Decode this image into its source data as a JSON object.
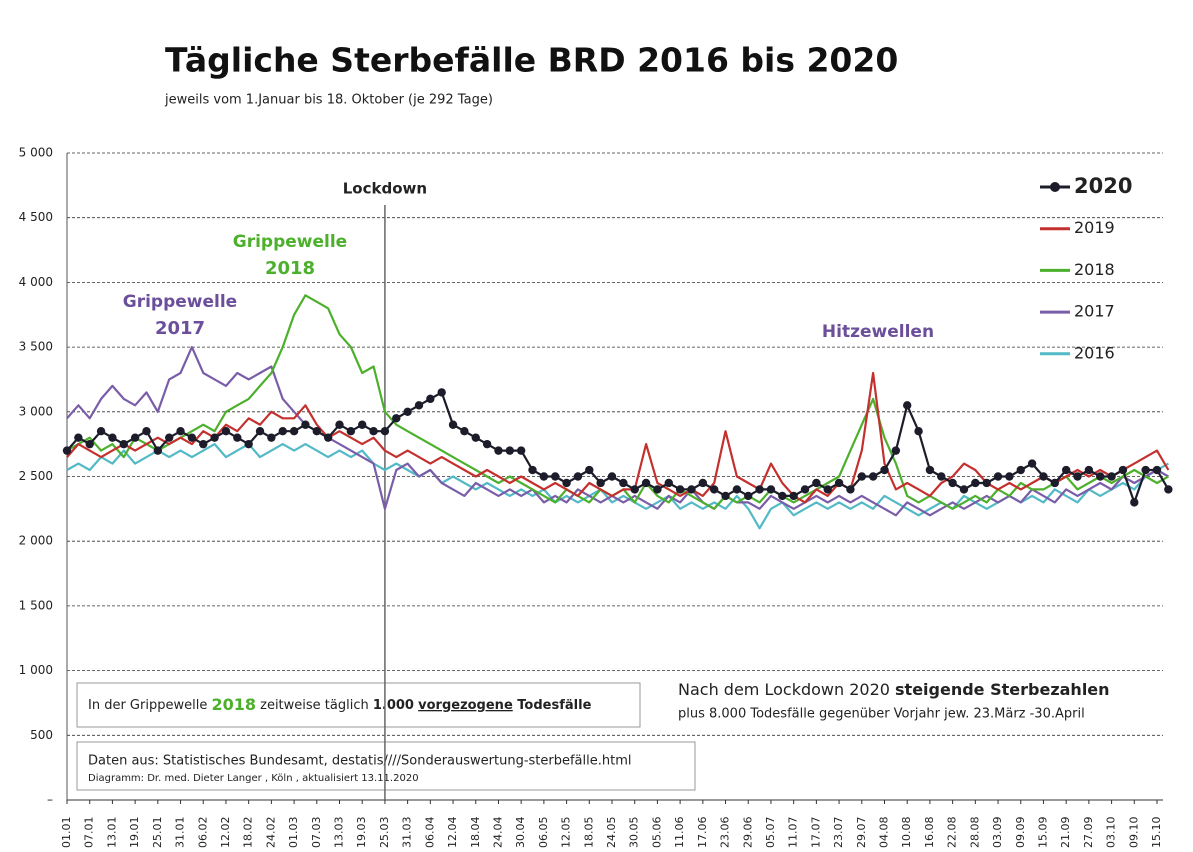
{
  "chart_data": {
    "type": "line",
    "title": "Tägliche Sterbefälle BRD 2016 bis 2020",
    "subtitle": "jeweils vom 1.Januar bis 18. Oktober  (je 292 Tage)",
    "categories": [
      "01.01",
      null,
      "07.01",
      null,
      "13.01",
      null,
      "19.01",
      null,
      "25.01",
      null,
      "31.01",
      null,
      "06.02",
      null,
      "12.02",
      null,
      "18.02",
      null,
      "24.02",
      null,
      "01.03",
      null,
      "07.03",
      null,
      "13.03",
      null,
      "19.03",
      null,
      "25.03",
      null,
      "31.03",
      null,
      "06.04",
      null,
      "12.04",
      null,
      "18.04",
      null,
      "24.04",
      null,
      "30.04",
      null,
      "06.05",
      null,
      "12.05",
      null,
      "18.05",
      null,
      "24.05",
      null,
      "30.05",
      null,
      "05.06",
      null,
      "11.06",
      null,
      "17.06",
      null,
      "23.06",
      null,
      "29.06",
      null,
      "05.07",
      null,
      "11.07",
      null,
      "17.07",
      null,
      "23.07",
      null,
      "29.07",
      null,
      "04.08",
      null,
      "10.08",
      null,
      "16.08",
      null,
      "22.08",
      null,
      "28.08",
      null,
      "03.09",
      null,
      "09.09",
      null,
      "15.09",
      null,
      "21.09",
      null,
      "27.09",
      null,
      "03.10",
      null,
      "09.10",
      null,
      "15.10",
      null
    ],
    "series": [
      {
        "name": "2020",
        "color": "#1c1c2a",
        "markers": true,
        "values": [
          2700,
          2800,
          2750,
          2850,
          2800,
          2750,
          2800,
          2850,
          2700,
          2800,
          2850,
          2800,
          2750,
          2800,
          2850,
          2800,
          2750,
          2850,
          2800,
          2850,
          2850,
          2900,
          2850,
          2800,
          2900,
          2850,
          2900,
          2850,
          2850,
          2950,
          3000,
          3050,
          3100,
          3150,
          2900,
          2850,
          2800,
          2750,
          2700,
          2700,
          2700,
          2550,
          2500,
          2500,
          2450,
          2500,
          2550,
          2450,
          2500,
          2450,
          2400,
          2450,
          2400,
          2450,
          2400,
          2400,
          2450,
          2400,
          2350,
          2400,
          2350,
          2400,
          2400,
          2350,
          2350,
          2400,
          2450,
          2400,
          2450,
          2400,
          2500,
          2500,
          2550,
          2700,
          3050,
          2850,
          2550,
          2500,
          2450,
          2400,
          2450,
          2450,
          2500,
          2500,
          2550,
          2600,
          2500,
          2450,
          2550,
          2500,
          2550,
          2500,
          2500,
          2550,
          2300,
          2550,
          2550,
          2400
        ]
      },
      {
        "name": "2019",
        "color": "#c4302e",
        "markers": false,
        "values": [
          2650,
          2750,
          2700,
          2650,
          2700,
          2750,
          2700,
          2750,
          2800,
          2750,
          2800,
          2750,
          2850,
          2800,
          2900,
          2850,
          2950,
          2900,
          3000,
          2950,
          2950,
          3050,
          2900,
          2800,
          2850,
          2800,
          2750,
          2800,
          2700,
          2650,
          2700,
          2650,
          2600,
          2650,
          2600,
          2550,
          2500,
          2550,
          2500,
          2450,
          2500,
          2450,
          2400,
          2450,
          2400,
          2350,
          2450,
          2400,
          2350,
          2400,
          2400,
          2750,
          2450,
          2400,
          2350,
          2400,
          2350,
          2450,
          2850,
          2500,
          2450,
          2400,
          2600,
          2450,
          2350,
          2300,
          2400,
          2350,
          2450,
          2400,
          2700,
          3300,
          2600,
          2400,
          2450,
          2400,
          2350,
          2450,
          2500,
          2600,
          2550,
          2450,
          2400,
          2450,
          2400,
          2450,
          2500,
          2450,
          2500,
          2550,
          2500,
          2550,
          2500,
          2550,
          2600,
          2650,
          2700,
          2550
        ]
      },
      {
        "name": "2018",
        "color": "#4db02c",
        "markers": false,
        "values": [
          2700,
          2750,
          2800,
          2700,
          2750,
          2650,
          2800,
          2750,
          2700,
          2750,
          2800,
          2850,
          2900,
          2850,
          3000,
          3050,
          3100,
          3200,
          3300,
          3500,
          3750,
          3900,
          3850,
          3800,
          3600,
          3500,
          3300,
          3350,
          3000,
          2900,
          2850,
          2800,
          2750,
          2700,
          2650,
          2600,
          2550,
          2500,
          2450,
          2500,
          2450,
          2400,
          2350,
          2300,
          2400,
          2350,
          2300,
          2400,
          2350,
          2400,
          2300,
          2450,
          2350,
          2300,
          2400,
          2350,
          2300,
          2250,
          2350,
          2300,
          2350,
          2300,
          2400,
          2350,
          2300,
          2350,
          2400,
          2450,
          2500,
          2700,
          2900,
          3100,
          2800,
          2600,
          2350,
          2300,
          2350,
          2300,
          2250,
          2300,
          2350,
          2300,
          2400,
          2350,
          2450,
          2400,
          2400,
          2450,
          2500,
          2400,
          2450,
          2500,
          2450,
          2500,
          2550,
          2500,
          2450,
          2500
        ]
      },
      {
        "name": "2017",
        "color": "#7a5da8",
        "markers": false,
        "values": [
          2950,
          3050,
          2950,
          3100,
          3200,
          3100,
          3050,
          3150,
          3000,
          3250,
          3300,
          3500,
          3300,
          3250,
          3200,
          3300,
          3250,
          3300,
          3350,
          3100,
          3000,
          2900,
          2850,
          2800,
          2750,
          2700,
          2650,
          2600,
          2250,
          2550,
          2600,
          2500,
          2550,
          2450,
          2400,
          2350,
          2450,
          2400,
          2350,
          2400,
          2350,
          2400,
          2300,
          2350,
          2300,
          2400,
          2350,
          2300,
          2350,
          2300,
          2350,
          2300,
          2250,
          2350,
          2300,
          2400,
          2300,
          2250,
          2350,
          2300,
          2300,
          2250,
          2350,
          2300,
          2250,
          2300,
          2350,
          2300,
          2350,
          2300,
          2350,
          2300,
          2250,
          2200,
          2300,
          2250,
          2200,
          2250,
          2300,
          2250,
          2300,
          2350,
          2300,
          2350,
          2300,
          2400,
          2350,
          2300,
          2400,
          2350,
          2400,
          2450,
          2400,
          2500,
          2450,
          2500,
          2550,
          2500
        ]
      },
      {
        "name": "2016",
        "color": "#52b9c6",
        "markers": false,
        "values": [
          2550,
          2600,
          2550,
          2650,
          2600,
          2700,
          2600,
          2650,
          2700,
          2650,
          2700,
          2650,
          2700,
          2750,
          2650,
          2700,
          2750,
          2650,
          2700,
          2750,
          2700,
          2750,
          2700,
          2650,
          2700,
          2650,
          2700,
          2600,
          2550,
          2600,
          2550,
          2500,
          2550,
          2450,
          2500,
          2450,
          2400,
          2450,
          2400,
          2350,
          2400,
          2350,
          2400,
          2300,
          2350,
          2300,
          2350,
          2400,
          2300,
          2350,
          2300,
          2250,
          2300,
          2350,
          2250,
          2300,
          2250,
          2300,
          2250,
          2350,
          2250,
          2100,
          2250,
          2300,
          2200,
          2250,
          2300,
          2250,
          2300,
          2250,
          2300,
          2250,
          2350,
          2300,
          2250,
          2200,
          2250,
          2300,
          2250,
          2350,
          2300,
          2250,
          2300,
          2350,
          2300,
          2350,
          2300,
          2400,
          2350,
          2300,
          2400,
          2350,
          2400,
          2450,
          2400,
          2500,
          2550,
          2600
        ]
      }
    ],
    "ylim": [
      0,
      5000
    ],
    "yticks": [
      {
        "value": 0,
        "label": "–"
      },
      500,
      {
        "value": 1000,
        "label": "1 000"
      },
      {
        "value": 1500,
        "label": "1 500"
      },
      {
        "value": 2000,
        "label": "2 000"
      },
      {
        "value": 2500,
        "label": "2 500"
      },
      {
        "value": 3000,
        "label": "3 000"
      },
      {
        "value": 3500,
        "label": "3 500"
      },
      {
        "value": 4000,
        "label": "4 000"
      },
      {
        "value": 4500,
        "label": "4 500"
      },
      {
        "value": 5000,
        "label": "5 000"
      }
    ],
    "grid": true,
    "legend": "top-right",
    "lockdown": {
      "label": "Lockdown",
      "date": "25.03"
    },
    "annotations": {
      "flu_2018": [
        "Grippewelle",
        "2018"
      ],
      "flu_2017": [
        "Grippewelle",
        "2017"
      ],
      "heat": "Hitzewellen"
    },
    "info_box": [
      "In der  Grippewelle ",
      "2018",
      " zeitweise täglich ",
      "1.000",
      "vorgezogene",
      " Todesfälle"
    ],
    "lockdown_note": [
      "Nach dem Lockdown 2020 ",
      "steigende Sterbezahlen",
      "plus 8.000 Todesfälle gegenüber Vorjahr jew. 23.März -30.April"
    ],
    "source": [
      "Daten aus:  Statistisches Bundesamt, destatis////Sonderauswertung-sterbefälle.html",
      "Diagramm: Dr. med. Dieter Langer , Köln  , aktualisiert  13.11.2020"
    ]
  }
}
